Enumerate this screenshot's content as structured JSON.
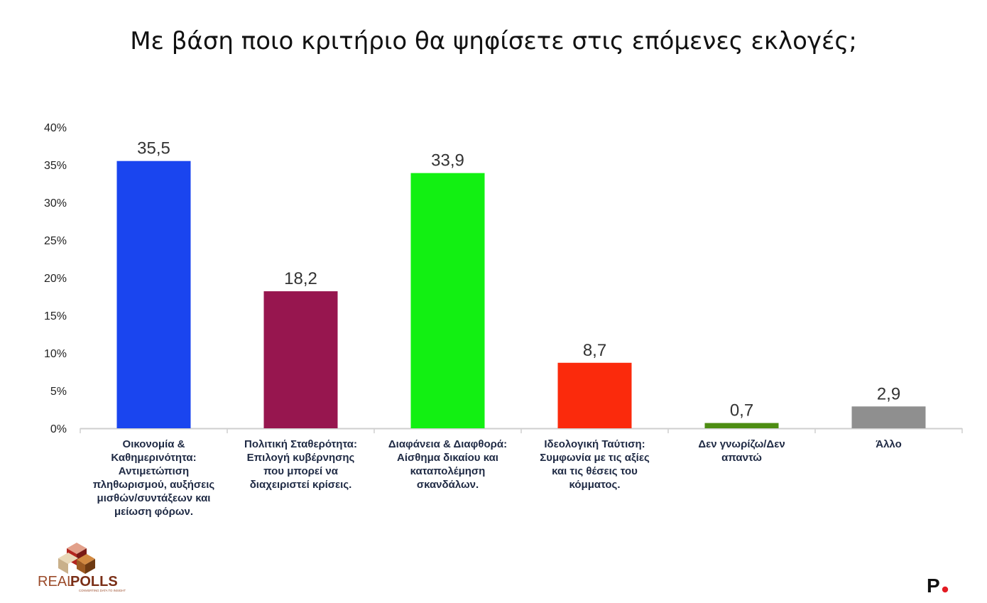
{
  "title": "Με βάση ποιο κριτήριο θα ψηφίσετε στις επόμενες εκλογές;",
  "chart_data": {
    "type": "bar",
    "categories": [
      "Οικονομία & Καθημερινότητα: Αντιμετώπιση πληθωρισμού, αυξήσεις μισθών/συντάξεων και μείωση φόρων.",
      "Πολιτική Σταθερότητα: Επιλογή κυβέρνησης που μπορεί να διαχειριστεί κρίσεις.",
      "Διαφάνεια & Διαφθορά: Αίσθημα δικαίου και καταπολέμηση σκανδάλων.",
      "Ιδεολογική Ταύτιση: Συμφωνία με τις αξίες και τις θέσεις του κόμματος.",
      "Δεν γνωρίζω/Δεν απαντώ",
      "Άλλο"
    ],
    "category_lines": [
      "Οικονομία &\nΚαθημερινότητα:\nΑντιμετώπιση\nπληθωρισμού, αυξήσεις\nμισθών/συντάξεων και\nμείωση φόρων.",
      "Πολιτική Σταθερότητα:\nΕπιλογή κυβέρνησης\nπου μπορεί να\nδιαχειριστεί κρίσεις.",
      "Διαφάνεια & Διαφθορά:\nΑίσθημα δικαίου και\nκαταπολέμηση\nσκανδάλων.",
      "Ιδεολογική Ταύτιση:\nΣυμφωνία με τις αξίες\nκαι τις θέσεις του\nκόμματος.",
      "Δεν γνωρίζω/Δεν\nαπαντώ",
      "Άλλο"
    ],
    "values": [
      35.5,
      18.2,
      33.9,
      8.7,
      0.7,
      2.9
    ],
    "value_labels": [
      "35,5",
      "18,2",
      "33,9",
      "8,7",
      "0,7",
      "2,9"
    ],
    "colors": [
      "#1a45ef",
      "#97164f",
      "#12f012",
      "#fb2a0c",
      "#4d8d12",
      "#8f8f8f"
    ],
    "ylim": [
      0,
      40
    ],
    "yticks": [
      0,
      5,
      10,
      15,
      20,
      25,
      30,
      35,
      40
    ],
    "ytick_labels": [
      "0%",
      "5%",
      "10%",
      "15%",
      "20%",
      "25%",
      "30%",
      "35%",
      "40%"
    ],
    "xlabel": "",
    "ylabel": "",
    "grid": false,
    "legend": "none"
  },
  "logo": {
    "text_real": "REAL",
    "text_polls": "POLLS",
    "tagline": "CONVERTING DATA TO INSIGHT"
  },
  "brand_mark": {
    "text": "P",
    "dot_color": "#e31b23"
  }
}
